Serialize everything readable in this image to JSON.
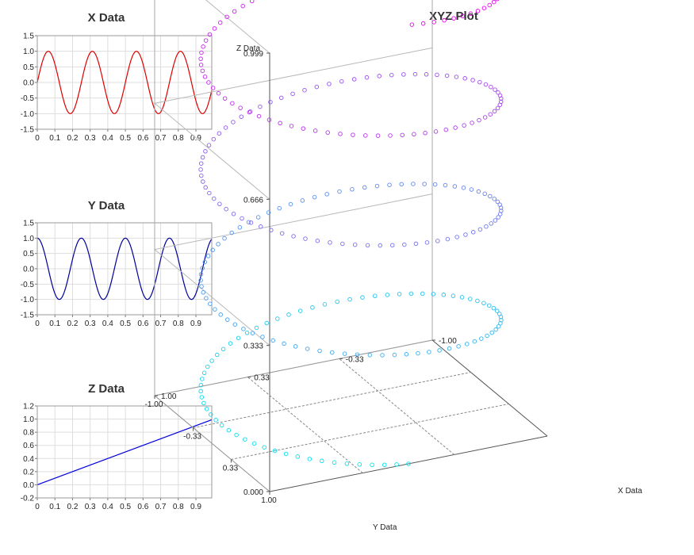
{
  "chart_data": [
    {
      "type": "line",
      "title": "X Data",
      "x_ticks": [
        "0",
        "0.1",
        "0.2",
        "0.3",
        "0.4",
        "0.5",
        "0.6",
        "0.7",
        "0.8",
        "0.9"
      ],
      "y_ticks": [
        "1.5",
        "1.0",
        "0.5",
        "0.0",
        "-0.5",
        "-1.0",
        "-1.5"
      ],
      "xlim": [
        0,
        0.99
      ],
      "ylim": [
        -1.5,
        1.5
      ],
      "grid": true,
      "series": [
        {
          "color": "#dd0000",
          "function": "sin(2*pi*4*t)",
          "x": [
            0,
            0.0625,
            0.125,
            0.1875,
            0.25,
            0.3125,
            0.375,
            0.4375,
            0.5,
            0.5625,
            0.625,
            0.6875,
            0.75,
            0.8125,
            0.875,
            0.9375,
            0.99
          ],
          "y": [
            0,
            1,
            0,
            -1,
            0,
            1,
            0,
            -1,
            0,
            1,
            0,
            -1,
            0,
            1,
            0,
            -1,
            -0.25
          ]
        }
      ]
    },
    {
      "type": "line",
      "title": "Y Data",
      "x_ticks": [
        "0",
        "0.1",
        "0.2",
        "0.3",
        "0.4",
        "0.5",
        "0.6",
        "0.7",
        "0.8",
        "0.9"
      ],
      "y_ticks": [
        "1.5",
        "1.0",
        "0.5",
        "0.0",
        "-0.5",
        "-1.0",
        "-1.5"
      ],
      "xlim": [
        0,
        0.99
      ],
      "ylim": [
        -1.5,
        1.5
      ],
      "grid": true,
      "series": [
        {
          "color": "#000099",
          "function": "cos(2*pi*4*t)",
          "x": [
            0,
            0.0625,
            0.125,
            0.1875,
            0.25,
            0.3125,
            0.375,
            0.4375,
            0.5,
            0.5625,
            0.625,
            0.6875,
            0.75,
            0.8125,
            0.875,
            0.9375,
            0.99
          ],
          "y": [
            1,
            0,
            -1,
            0,
            1,
            0,
            -1,
            0,
            1,
            0,
            -1,
            0,
            1,
            0,
            -1,
            0,
            0.97
          ]
        }
      ]
    },
    {
      "type": "line",
      "title": "Z Data",
      "x_ticks": [
        "0",
        "0.1",
        "0.2",
        "0.3",
        "0.4",
        "0.5",
        "0.6",
        "0.7",
        "0.8",
        "0.9"
      ],
      "y_ticks": [
        "1.2",
        "1.0",
        "0.8",
        "0.6",
        "0.4",
        "0.2",
        "0.0",
        "-0.2"
      ],
      "xlim": [
        0,
        0.99
      ],
      "ylim": [
        -0.2,
        1.2
      ],
      "grid": true,
      "series": [
        {
          "color": "#0000dd",
          "function": "t",
          "x": [
            0,
            0.99
          ],
          "y": [
            0,
            0.99
          ]
        }
      ]
    },
    {
      "type": "scatter",
      "title": "XYZ Plot",
      "xlabel": "X Data",
      "ylabel": "Y Data",
      "zlabel": "Z Data",
      "x_ticks": [
        "1.00",
        "0.33",
        "-0.33",
        "-1.00"
      ],
      "y_ticks": [
        "1.00",
        "0.33",
        "-0.33",
        "-1.00"
      ],
      "z_ticks": [
        "0.000",
        "0.333",
        "0.666",
        "0.999"
      ],
      "xlim": [
        -1,
        1
      ],
      "ylim": [
        -1,
        1
      ],
      "zlim": [
        0,
        0.999
      ],
      "marker": "open circle",
      "color_low": "#00e8ee",
      "color_high": "#ee00ee",
      "turns": 4,
      "points": 300,
      "series": [
        {
          "x_function": "sin(2*pi*4*t)",
          "y_function": "cos(2*pi*4*t)",
          "z_function": "t"
        }
      ]
    }
  ]
}
